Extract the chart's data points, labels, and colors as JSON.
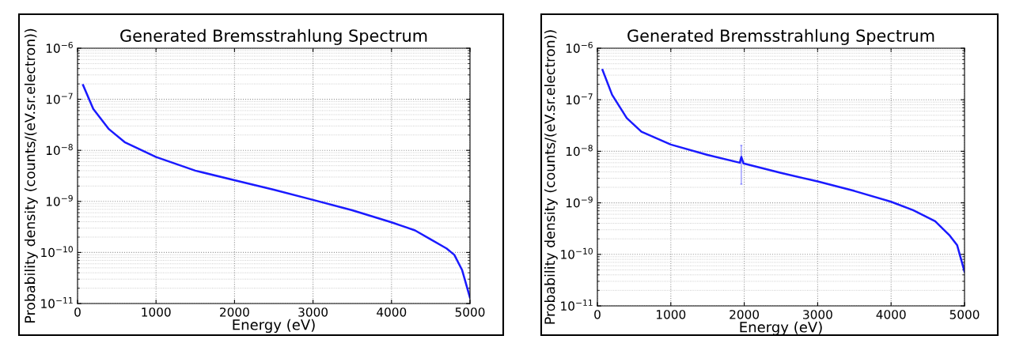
{
  "chart_data": [
    {
      "type": "line",
      "title": "Generated Bremsstrahlung Spectrum",
      "xlabel": "Energy (eV)",
      "ylabel": "Probability density (counts/(eV.sr.electron))",
      "log": "y",
      "grid": true,
      "line_style": "solid",
      "marker": "none",
      "xlim": [
        0,
        5000
      ],
      "xticks": [
        0,
        1000,
        2000,
        3000,
        4000,
        5000
      ],
      "ylim": [
        1e-11,
        1e-06
      ],
      "yticks": [
        {
          "value": 1e-11,
          "label": "10$^{−11}$"
        },
        {
          "value": 1e-10,
          "label": "10$^{−10}$"
        },
        {
          "value": 1e-09,
          "label": "10$^{−9}$"
        },
        {
          "value": 1e-08,
          "label": "10$^{−8}$"
        },
        {
          "value": 1e-07,
          "label": "10$^{−7}$"
        },
        {
          "value": 1e-06,
          "label": "10$^{−6}$"
        }
      ],
      "x": [
        70,
        200,
        400,
        600,
        1000,
        1500,
        2000,
        2500,
        3000,
        3500,
        4000,
        4300,
        4500,
        4700,
        4800,
        4900,
        5000
      ],
      "series": [
        {
          "color": "#1a1aff",
          "values": [
            1.9e-07,
            6.5e-08,
            2.6e-08,
            1.45e-08,
            7.4e-09,
            4e-09,
            2.6e-09,
            1.7e-09,
            1.07e-09,
            6.7e-10,
            3.9e-10,
            2.7e-10,
            1.8e-10,
            1.2e-10,
            9e-11,
            4.5e-11,
            1.3e-11
          ]
        }
      ]
    },
    {
      "type": "line",
      "title": "Generated Bremsstrahlung Spectrum",
      "xlabel": "Energy (eV)",
      "ylabel": "Probability density (counts/(eV.sr.electron))",
      "log": "y",
      "grid": true,
      "line_style": "solid",
      "marker": "none",
      "xlim": [
        0,
        5000
      ],
      "xticks": [
        0,
        1000,
        2000,
        3000,
        4000,
        5000
      ],
      "ylim": [
        1e-11,
        1e-06
      ],
      "yticks": [
        {
          "value": 1e-11,
          "label": "10$^{−11}$"
        },
        {
          "value": 1e-10,
          "label": "10$^{−10}$"
        },
        {
          "value": 1e-09,
          "label": "10$^{−9}$"
        },
        {
          "value": 1e-08,
          "label": "10$^{−8}$"
        },
        {
          "value": 1e-07,
          "label": "10$^{−7}$"
        },
        {
          "value": 1e-06,
          "label": "10$^{−6}$"
        }
      ],
      "x": [
        70,
        200,
        400,
        600,
        1000,
        1500,
        1940,
        1960,
        1990,
        2500,
        3000,
        3500,
        4000,
        4300,
        4600,
        4800,
        4900,
        5000
      ],
      "series": [
        {
          "color": "#1a1aff",
          "values": [
            3.8e-07,
            1.25e-07,
            4.4e-08,
            2.4e-08,
            1.35e-08,
            8.5e-09,
            6e-09,
            7.8e-09,
            5.8e-09,
            3.8e-09,
            2.6e-09,
            1.7e-09,
            1.05e-09,
            7.2e-10,
            4.4e-10,
            2.3e-10,
            1.5e-10,
            4.6e-11
          ],
          "errors": [
            null,
            null,
            null,
            null,
            null,
            null,
            null,
            [
              2.3e-09,
              1.3e-08
            ],
            null,
            null,
            null,
            null,
            null,
            null,
            null,
            null,
            null,
            null
          ]
        }
      ]
    }
  ]
}
